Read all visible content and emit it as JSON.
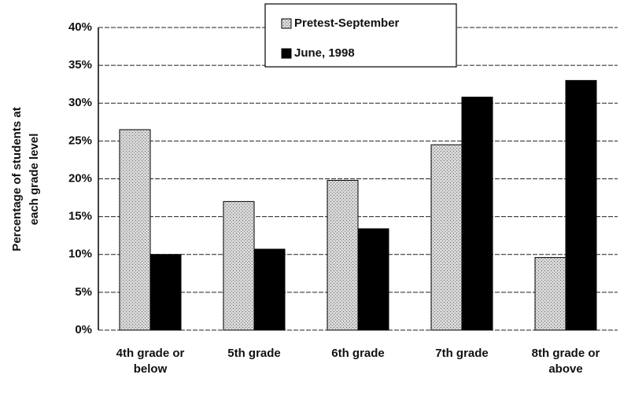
{
  "chart_data": {
    "type": "bar",
    "ylabel": [
      "Percentage of students at",
      "each grade level"
    ],
    "categories": [
      "4th grade or below",
      "5th grade",
      "6th grade",
      "7th grade",
      "8th grade or above"
    ],
    "series": [
      {
        "name": "Pretest-September",
        "color": "#c4c4c4",
        "values": [
          26.5,
          17,
          19.8,
          24.5,
          9.6
        ]
      },
      {
        "name": "June, 1998",
        "color": "#000000",
        "values": [
          10,
          10.7,
          13.4,
          30.8,
          33
        ]
      }
    ],
    "ylim": [
      0,
      40
    ],
    "yticks": [
      {
        "value": 0,
        "label": "0%"
      },
      {
        "value": 5,
        "label": "5%"
      },
      {
        "value": 10,
        "label": "10%"
      },
      {
        "value": 15,
        "label": "15%"
      },
      {
        "value": 20,
        "label": "20%"
      },
      {
        "value": 25,
        "label": "25%"
      },
      {
        "value": 30,
        "label": "30%"
      },
      {
        "value": 35,
        "label": "35%"
      },
      {
        "value": 40,
        "label": "40%"
      }
    ],
    "grid": true
  }
}
